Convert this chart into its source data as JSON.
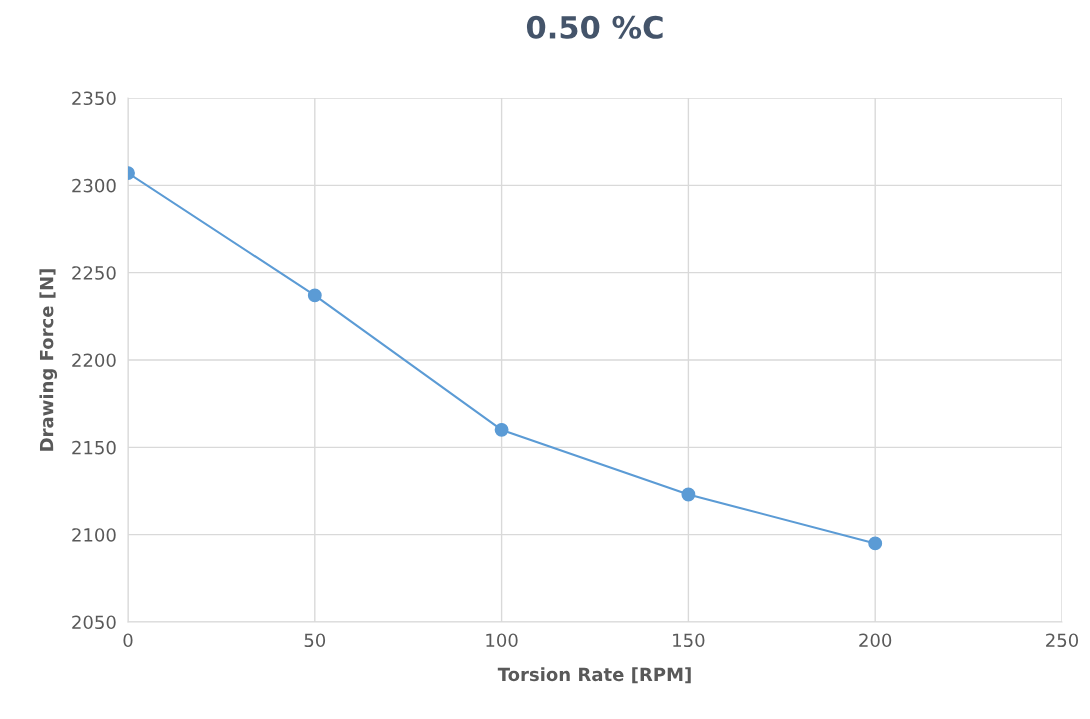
{
  "chart_data": {
    "type": "line",
    "title": "0.50 %C",
    "xlabel": "Torsion Rate [RPM]",
    "ylabel": "Drawing Force [N]",
    "x": [
      0,
      50,
      100,
      150,
      200
    ],
    "series": [
      {
        "color": "#5b9bd5",
        "values": [
          2307,
          2237,
          2160,
          2123,
          2095
        ]
      }
    ],
    "xlim": [
      0,
      250
    ],
    "xticks": [
      0,
      50,
      100,
      150,
      200,
      250
    ],
    "ylim": [
      2050,
      2350
    ],
    "yticks": [
      2050,
      2100,
      2150,
      2200,
      2250,
      2300,
      2350
    ],
    "grid": true,
    "marker": "circle",
    "line_style": "solid"
  }
}
